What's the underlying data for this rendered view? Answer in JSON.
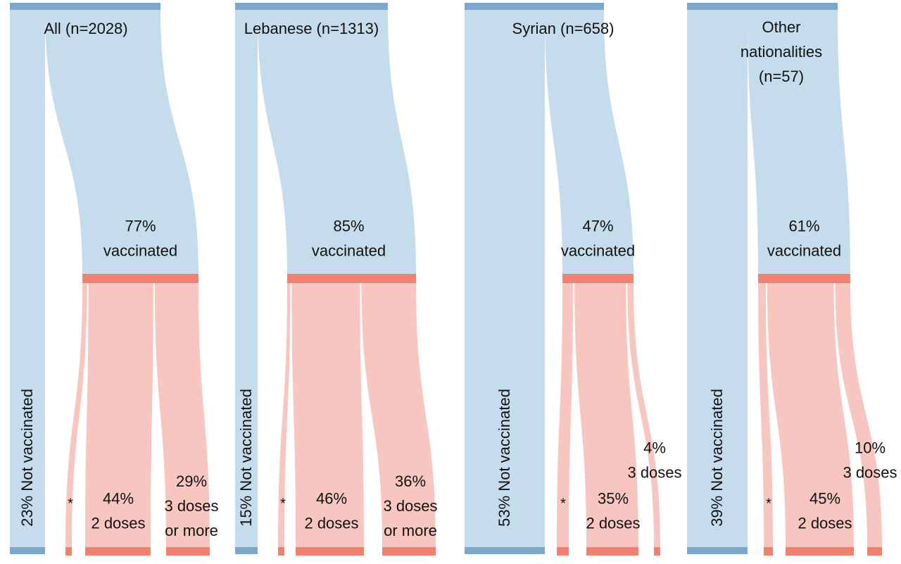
{
  "colors": {
    "blue_flow": "#c5dcec",
    "blue_node": "#7ba7cc",
    "red_flow": "#f8c6c0",
    "red_node": "#f3806f"
  },
  "chart_data": {
    "type": "sankey",
    "panels": [
      {
        "title": [
          "All (n=2028)"
        ],
        "vaccinated_pct": 77,
        "not_vaccinated_pct": 23,
        "vaccinated_label": [
          "77%",
          "vaccinated"
        ],
        "not_vaccinated_label": "23% Not vaccinated",
        "doses": [
          {
            "pct": 4,
            "label": [
              "*"
            ]
          },
          {
            "pct": 44,
            "label": [
              "44%",
              "2 doses"
            ]
          },
          {
            "pct": 29,
            "label": [
              "29%",
              "3 doses",
              "or more"
            ]
          }
        ]
      },
      {
        "title": [
          "Lebanese (n=1313)"
        ],
        "vaccinated_pct": 85,
        "not_vaccinated_pct": 15,
        "vaccinated_label": [
          "85%",
          "vaccinated"
        ],
        "not_vaccinated_label": "15% Not vaccinated",
        "doses": [
          {
            "pct": 3,
            "label": [
              "*"
            ]
          },
          {
            "pct": 46,
            "label": [
              "46%",
              "2 doses"
            ]
          },
          {
            "pct": 36,
            "label": [
              "36%",
              "3 doses",
              "or more"
            ]
          }
        ]
      },
      {
        "title": [
          "Syrian (n=658)"
        ],
        "vaccinated_pct": 47,
        "not_vaccinated_pct": 53,
        "vaccinated_label": [
          "47%",
          "vaccinated"
        ],
        "not_vaccinated_label": "53% Not vaccinated",
        "doses": [
          {
            "pct": 8,
            "label": [
              "*"
            ]
          },
          {
            "pct": 35,
            "label": [
              "35%",
              "2 doses"
            ]
          },
          {
            "pct": 4,
            "label": [
              "4%",
              "3 doses"
            ]
          }
        ]
      },
      {
        "title": [
          "Other",
          "nationalities",
          "(n=57)"
        ],
        "vaccinated_pct": 61,
        "not_vaccinated_pct": 39,
        "vaccinated_label": [
          "61%",
          "vaccinated"
        ],
        "not_vaccinated_label": "39% Not vaccinated",
        "doses": [
          {
            "pct": 6,
            "label": [
              "*"
            ]
          },
          {
            "pct": 45,
            "label": [
              "45%",
              "2 doses"
            ]
          },
          {
            "pct": 10,
            "label": [
              "10%",
              "3 doses"
            ]
          }
        ]
      }
    ]
  }
}
